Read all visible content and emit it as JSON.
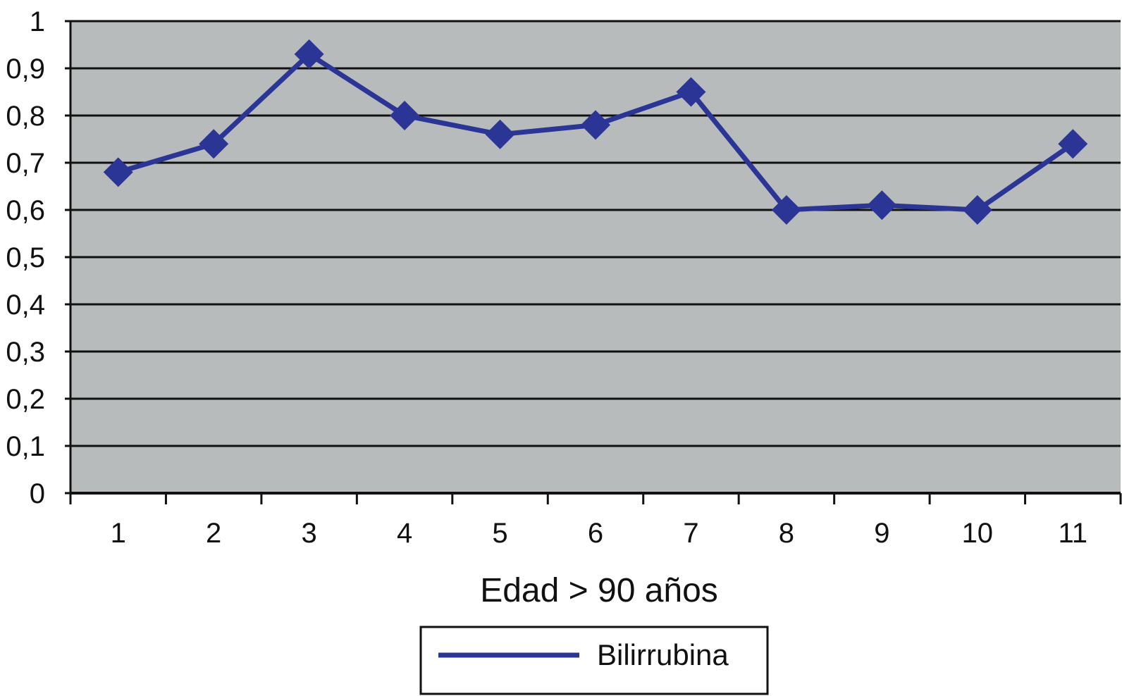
{
  "chart_data": {
    "type": "line",
    "categories": [
      "1",
      "2",
      "3",
      "4",
      "5",
      "6",
      "7",
      "8",
      "9",
      "10",
      "11"
    ],
    "series": [
      {
        "name": "Bilirrubina",
        "values": [
          0.68,
          0.74,
          0.93,
          0.8,
          0.76,
          0.78,
          0.85,
          0.6,
          0.61,
          0.6,
          0.74
        ],
        "marker": "diamond"
      }
    ],
    "xlabel": "Edad > 90 años",
    "ylabel": "",
    "ylim": [
      0,
      1
    ],
    "yticks": [
      {
        "value": 0,
        "label": "0"
      },
      {
        "value": 0.1,
        "label": "0,1"
      },
      {
        "value": 0.2,
        "label": "0,2"
      },
      {
        "value": 0.3,
        "label": "0,3"
      },
      {
        "value": 0.4,
        "label": "0,4"
      },
      {
        "value": 0.5,
        "label": "0,5"
      },
      {
        "value": 0.6,
        "label": "0,6"
      },
      {
        "value": 0.7,
        "label": "0,7"
      },
      {
        "value": 0.8,
        "label": "0,8"
      },
      {
        "value": 0.9,
        "label": "0,9"
      },
      {
        "value": 1,
        "label": "1"
      }
    ],
    "grid": true,
    "legend_position": "bottom",
    "colors": {
      "plot_background": "#b8bbbb",
      "series": "#2b3595",
      "gridline": "#111111"
    }
  }
}
